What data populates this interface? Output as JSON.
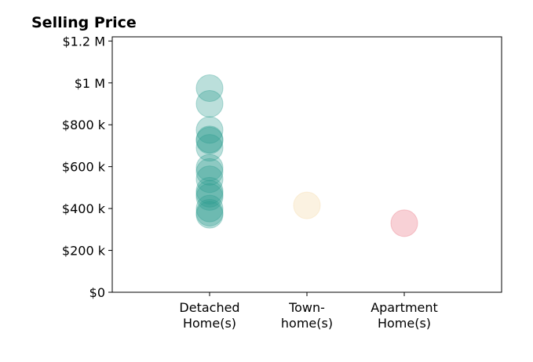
{
  "chart_data": {
    "type": "scatter",
    "title": "Selling Price",
    "xlabel": "",
    "ylabel": "",
    "categories": [
      [
        "Detached",
        "Home(s)"
      ],
      [
        "Town-",
        "home(s)"
      ],
      [
        "Apartment",
        "Home(s)"
      ]
    ],
    "x_range": [
      -1,
      3
    ],
    "ylim": [
      0,
      1220000
    ],
    "y_ticks": [
      {
        "value": 0,
        "label": "$0"
      },
      {
        "value": 200000,
        "label": "$200 k"
      },
      {
        "value": 400000,
        "label": "$400 k"
      },
      {
        "value": 600000,
        "label": "$600 k"
      },
      {
        "value": 800000,
        "label": "$800 k"
      },
      {
        "value": 1000000,
        "label": "$1 M"
      },
      {
        "value": 1200000,
        "label": "$1.2 M"
      }
    ],
    "grid": false,
    "series": [
      {
        "category_index": 0,
        "color": "#2a9d8f",
        "values": [
          975000,
          900000,
          775000,
          730000,
          725000,
          690000,
          595000,
          575000,
          540000,
          485000,
          470000,
          455000,
          400000,
          380000,
          370000
        ]
      },
      {
        "category_index": 1,
        "color": "#f4d7a1",
        "values": [
          415000
        ]
      },
      {
        "category_index": 2,
        "color": "#e9707f",
        "values": [
          330000
        ]
      }
    ]
  }
}
